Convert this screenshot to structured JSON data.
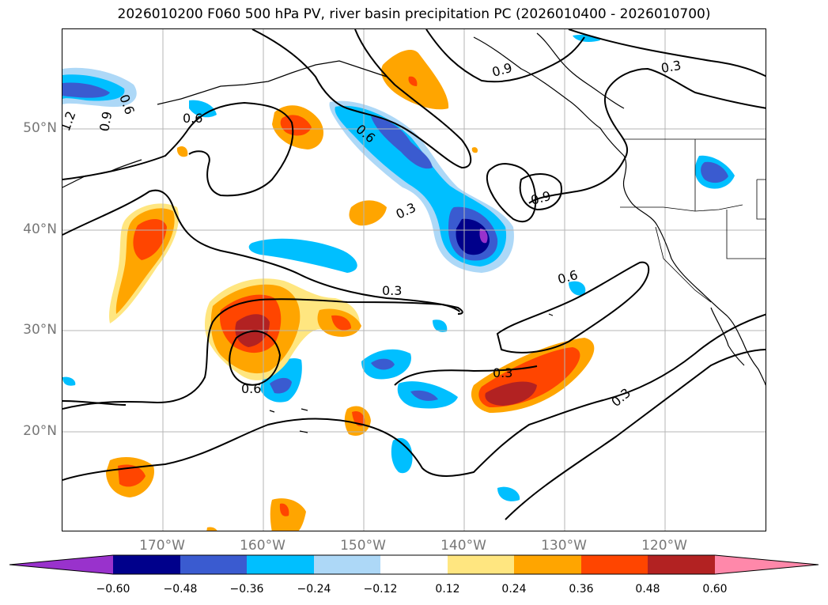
{
  "title": "2026010200 F060 500 hPa PV, river basin precipitation PC (2026010400 - 2026010700)",
  "lat_labels": [
    "50°N",
    "40°N",
    "30°N",
    "20°N"
  ],
  "lon_labels": [
    "170°W",
    "160°W",
    "150°W",
    "140°W",
    "130°W",
    "120°W"
  ],
  "pv_contour_labels": [
    "0.6",
    "1.2",
    "0.9",
    "0.6",
    "0.6",
    "0.9",
    "0.3",
    "0.9",
    "0.3",
    "0.6",
    "0.3",
    "0.6",
    "0.3",
    "0.3"
  ],
  "colorbar": {
    "ticks": [
      "−0.60",
      "−0.48",
      "−0.36",
      "−0.24",
      "−0.12",
      "0.12",
      "0.24",
      "0.36",
      "0.48",
      "0.60"
    ],
    "colors": [
      "#9932cc",
      "#00008b",
      "#3a5bd0",
      "#00bfff",
      "#add8f7",
      "#ffffff",
      "#ffe680",
      "#ffa500",
      "#ff4500",
      "#b22222",
      "#ff88aa"
    ]
  }
}
